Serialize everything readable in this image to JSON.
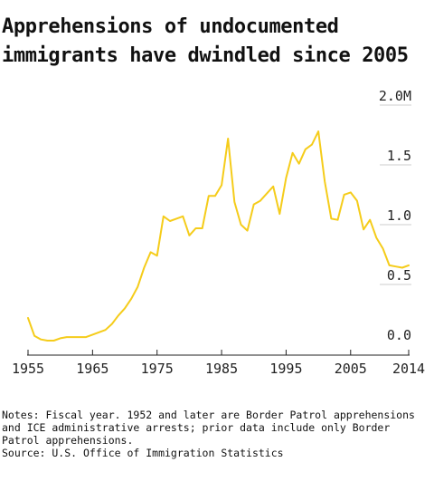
{
  "header": {
    "title": "Apprehensions of undocumented immigrants have dwindled since 2005"
  },
  "footer": {
    "notes": "Notes: Fiscal year. 1952 and later are Border Patrol apprehensions and ICE administrative arrests; prior data include only Border Patrol apprehensions.",
    "source": "Source: U.S. Office of Immigration Statistics"
  },
  "chart_data": {
    "type": "line",
    "title": "Apprehensions of undocumented immigrants have dwindled since 2005",
    "xlabel": "",
    "ylabel": "",
    "xlim": [
      1955,
      2014
    ],
    "ylim": [
      0,
      2.0
    ],
    "y_unit": "M",
    "grid": false,
    "line_color": "#f5cc1a",
    "x_ticks": [
      {
        "value": 1955,
        "label": "1955"
      },
      {
        "value": 1965,
        "label": "1965"
      },
      {
        "value": 1975,
        "label": "1975"
      },
      {
        "value": 1985,
        "label": "1985"
      },
      {
        "value": 1995,
        "label": "1995"
      },
      {
        "value": 2005,
        "label": "2005"
      },
      {
        "value": 2014,
        "label": "2014"
      }
    ],
    "y_ticks": [
      {
        "value": 0.0,
        "label": "0.0"
      },
      {
        "value": 0.5,
        "label": "0.5"
      },
      {
        "value": 1.0,
        "label": "1.0"
      },
      {
        "value": 1.5,
        "label": "1.5"
      },
      {
        "value": 2.0,
        "label": "2.0M"
      }
    ],
    "series": [
      {
        "x": [
          1955,
          1956,
          1957,
          1958,
          1959,
          1960,
          1961,
          1962,
          1963,
          1964,
          1965,
          1966,
          1967,
          1968,
          1969,
          1970,
          1971,
          1972,
          1973,
          1974,
          1975,
          1976,
          1977,
          1978,
          1979,
          1980,
          1981,
          1982,
          1983,
          1984,
          1985,
          1986,
          1987,
          1988,
          1989,
          1990,
          1991,
          1992,
          1993,
          1994,
          1995,
          1996,
          1997,
          1998,
          1999,
          2000,
          2001,
          2002,
          2003,
          2004,
          2005,
          2006,
          2007,
          2008,
          2009,
          2010,
          2011,
          2012,
          2013,
          2014
        ],
        "y": [
          0.22,
          0.07,
          0.04,
          0.03,
          0.03,
          0.05,
          0.06,
          0.06,
          0.06,
          0.06,
          0.08,
          0.1,
          0.12,
          0.17,
          0.24,
          0.3,
          0.38,
          0.48,
          0.64,
          0.77,
          0.74,
          1.07,
          1.03,
          1.05,
          1.07,
          0.91,
          0.97,
          0.97,
          1.24,
          1.24,
          1.33,
          1.72,
          1.19,
          1.0,
          0.95,
          1.17,
          1.2,
          1.26,
          1.32,
          1.09,
          1.39,
          1.6,
          1.51,
          1.63,
          1.67,
          1.78,
          1.36,
          1.05,
          1.04,
          1.25,
          1.27,
          1.2,
          0.96,
          1.04,
          0.89,
          0.8,
          0.66,
          0.65,
          0.64,
          0.66
        ]
      }
    ]
  }
}
